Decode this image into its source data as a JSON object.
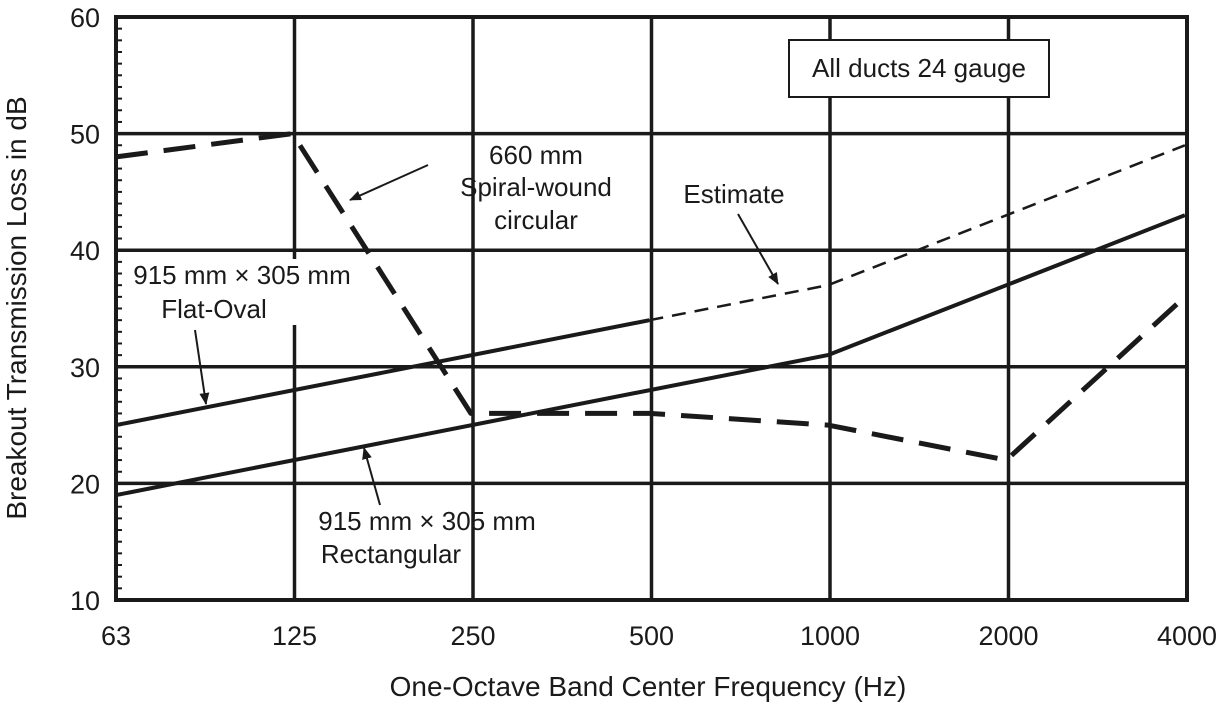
{
  "chart_data": {
    "type": "line",
    "xlabel": "One-Octave Band Center Frequency (Hz)",
    "ylabel": "Breakout Transmission Loss in dB",
    "x_scale": "log2",
    "categories": [
      "63",
      "125",
      "250",
      "500",
      "1000",
      "2000",
      "4000"
    ],
    "ylim": [
      10,
      60
    ],
    "yticks": [
      "10",
      "20",
      "30",
      "40",
      "50",
      "60"
    ],
    "grid": true,
    "legend_box": "All ducts 24 gauge",
    "series": [
      {
        "name": "915 mm × 305 mm Flat-Oval",
        "line_style": "solid",
        "x": [
          63,
          500
        ],
        "values": [
          25,
          34
        ]
      },
      {
        "name": "Estimate",
        "line_style": "thin-dashed",
        "x": [
          500,
          1000,
          4000
        ],
        "values": [
          34,
          37,
          49
        ]
      },
      {
        "name": "915 mm × 305 mm Rectangular",
        "line_style": "solid",
        "x": [
          63,
          1000,
          2000,
          4000
        ],
        "values": [
          19,
          31,
          37,
          43
        ]
      },
      {
        "name": "660 mm Spiral-wound circular",
        "line_style": "thick-dashed",
        "x": [
          63,
          125,
          250,
          500,
          1000,
          2000,
          4000
        ],
        "values": [
          48,
          50,
          26,
          26,
          25,
          22,
          36
        ]
      }
    ],
    "annotations": {
      "spiral_line1": "660 mm",
      "spiral_line2": "Spiral-wound",
      "spiral_line3": "circular",
      "estimate": "Estimate",
      "flatoval_line1": "915 mm × 305 mm",
      "flatoval_line2": "Flat-Oval",
      "rect_line1": "915 mm × 305 mm",
      "rect_line2": "Rectangular"
    }
  }
}
